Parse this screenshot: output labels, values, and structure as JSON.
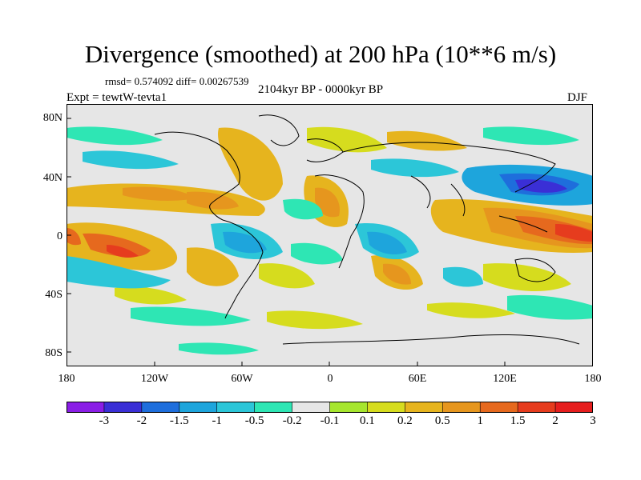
{
  "title": "Divergence (smoothed) at 200 hPa (10**6 m/s)",
  "stats": "rmsd= 0.574092 diff= 0.00267539",
  "period": "2104kyr BP - 0000kyr BP",
  "experiment": "Expt = tewtW-tevta1",
  "season": "DJF",
  "y_axis_labels": [
    "80N",
    "40N",
    "0",
    "40S",
    "80S"
  ],
  "x_axis_labels": [
    "180",
    "120W",
    "60W",
    "0",
    "60E",
    "120E",
    "180"
  ],
  "colorbar": {
    "colors": [
      "#8a1ee6",
      "#3a2fd6",
      "#1e6edc",
      "#1ea5dc",
      "#2cc6d8",
      "#2ee6b4",
      "#e6e6e6",
      "#a6e62e",
      "#d6dc1e",
      "#e6b41e",
      "#e6961e",
      "#e6691e",
      "#e63c1e",
      "#e61e1e"
    ],
    "labels": [
      "-3",
      "-2",
      "-1.5",
      "-1",
      "-0.5",
      "-0.2",
      "-0.1",
      "0.1",
      "0.2",
      "0.5",
      "1",
      "1.5",
      "2",
      "3"
    ]
  }
}
